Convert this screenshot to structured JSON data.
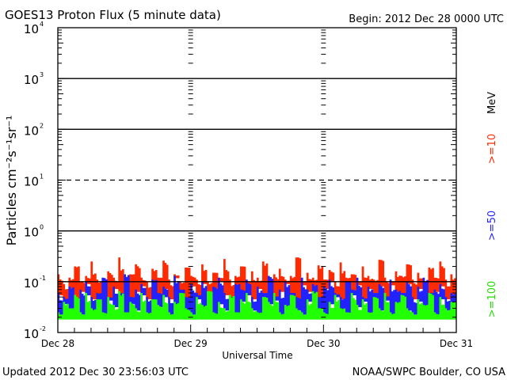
{
  "chart_data": {
    "type": "line",
    "title": "GOES13 Proton Flux (5 minute data)",
    "begin_label": "Begin: 2012 Dec 28 0000 UTC",
    "xlabel": "Universal Time",
    "ylabel": "Particles cm⁻²s⁻¹sr⁻¹",
    "units_label": "MeV",
    "yscale": "log",
    "ylim": [
      0.01,
      10000
    ],
    "ytick_labels": [
      {
        "base": "10",
        "exp": "-2",
        "value": 0.01
      },
      {
        "base": "10",
        "exp": "-1",
        "value": 0.1
      },
      {
        "base": "10",
        "exp": "0",
        "value": 1
      },
      {
        "base": "10",
        "exp": "1",
        "value": 10
      },
      {
        "base": "10",
        "exp": "2",
        "value": 100
      },
      {
        "base": "10",
        "exp": "3",
        "value": 1000
      },
      {
        "base": "10",
        "exp": "4",
        "value": 10000
      }
    ],
    "xlim_days": [
      0,
      3
    ],
    "xtick_labels": [
      "Dec 28",
      "Dec 29",
      "Dec 30",
      "Dec 31"
    ],
    "grid": "decade lines (10^1 dashed)",
    "series": [
      {
        "name": ">=10",
        "color": "#ff2a00",
        "values": [
          0.14,
          0.09,
          0.12,
          0.2,
          0.1,
          0.13,
          0.25,
          0.11,
          0.09,
          0.16,
          0.12,
          0.3,
          0.1,
          0.14,
          0.22,
          0.12,
          0.1,
          0.18,
          0.12,
          0.26,
          0.11,
          0.14,
          0.1,
          0.19,
          0.13,
          0.11,
          0.22,
          0.1,
          0.15,
          0.12,
          0.28,
          0.11,
          0.13,
          0.2,
          0.1,
          0.16,
          0.12,
          0.25,
          0.1,
          0.14,
          0.18,
          0.11,
          0.13,
          0.3,
          0.1,
          0.15,
          0.12,
          0.21,
          0.11,
          0.17,
          0.1,
          0.24,
          0.12,
          0.14,
          0.1,
          0.2,
          0.13,
          0.11,
          0.27,
          0.12,
          0.1,
          0.16,
          0.13,
          0.22,
          0.11,
          0.15,
          0.1,
          0.19,
          0.12,
          0.25,
          0.11,
          0.14
        ]
      },
      {
        "name": ">=50",
        "color": "#2222ff",
        "values": [
          0.06,
          0.05,
          0.08,
          0.04,
          0.07,
          0.1,
          0.05,
          0.06,
          0.12,
          0.05,
          0.08,
          0.06,
          0.14,
          0.05,
          0.07,
          0.09,
          0.05,
          0.11,
          0.06,
          0.08,
          0.05,
          0.13,
          0.07,
          0.05,
          0.09,
          0.06,
          0.1,
          0.05,
          0.08,
          0.12,
          0.06,
          0.05,
          0.09,
          0.07,
          0.11,
          0.05,
          0.08,
          0.06,
          0.13,
          0.05,
          0.07,
          0.1,
          0.06,
          0.05,
          0.12,
          0.07,
          0.09,
          0.05,
          0.08,
          0.11,
          0.06,
          0.05,
          0.1,
          0.07,
          0.12,
          0.05,
          0.08,
          0.06,
          0.09,
          0.05,
          0.11,
          0.07,
          0.06,
          0.1,
          0.05,
          0.08,
          0.12,
          0.06,
          0.07,
          0.09,
          0.05,
          0.06
        ]
      },
      {
        "name": ">=100",
        "color": "#22ff00",
        "values": [
          0.025,
          0.04,
          0.03,
          0.055,
          0.025,
          0.06,
          0.03,
          0.045,
          0.025,
          0.05,
          0.035,
          0.065,
          0.025,
          0.04,
          0.03,
          0.06,
          0.025,
          0.045,
          0.035,
          0.055,
          0.025,
          0.04,
          0.06,
          0.03,
          0.025,
          0.05,
          0.035,
          0.065,
          0.025,
          0.04,
          0.03,
          0.055,
          0.025,
          0.045,
          0.06,
          0.03,
          0.025,
          0.05,
          0.04,
          0.06,
          0.025,
          0.035,
          0.055,
          0.03,
          0.025,
          0.045,
          0.065,
          0.03,
          0.025,
          0.04,
          0.055,
          0.03,
          0.025,
          0.06,
          0.035,
          0.045,
          0.025,
          0.05,
          0.03,
          0.06,
          0.025,
          0.04,
          0.055,
          0.03,
          0.025,
          0.045,
          0.035,
          0.06,
          0.025,
          0.05,
          0.03,
          0.04
        ]
      }
    ]
  },
  "footer": {
    "updated": "Updated 2012 Dec 30 23:56:03 UTC",
    "source": "NOAA/SWPC Boulder, CO USA"
  }
}
